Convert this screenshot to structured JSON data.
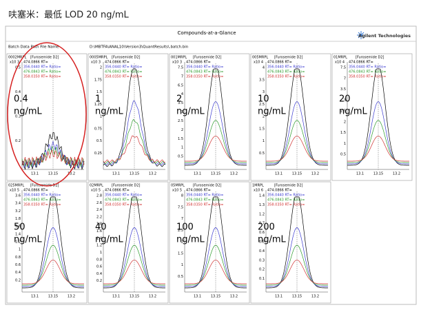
{
  "title": "呋塞米：最低 LOD 20 ng/mL",
  "report": {
    "heading": "Compounds-at-a-Glance",
    "brand": "Agilent Technologies",
    "path_label": "Batch Data Path File Name",
    "path": "D:\\MBTFA\\ANAL10\\Version3\\QuantResults\\.batch.bin"
  },
  "compound": "[Furosemide D2]",
  "unit": "ng/mL",
  "traces": [
    {
      "label": "474.0866 RT=",
      "color": "#000000"
    },
    {
      "label": "356.0440 RT= Ratio=",
      "color": "#3a3ad0"
    },
    {
      "label": "476.0843 RT= Ratio=",
      "color": "#2a9a2a"
    },
    {
      "label": "358.0350 RT= Ratio=",
      "color": "#d03030"
    }
  ],
  "xticks": [
    "13.1",
    "13.15",
    "13.2"
  ],
  "panels": [
    {
      "name": "0002MRPL",
      "exp": "x10 3",
      "conc": "0.4",
      "yticks": [
        "0.5",
        "0.4",
        "0.3",
        "0.2"
      ]
    },
    {
      "name": "0005MRPL",
      "exp": "x10 3",
      "conc": "1",
      "yticks": [
        "2",
        "1.75",
        "1.5",
        "1.25",
        "1",
        "0.75",
        "0.5",
        "0.25"
      ]
    },
    {
      "name": "001MRPL",
      "exp": "x10 3",
      "conc": "2",
      "yticks": [
        "7.5",
        "7",
        "6.5",
        "4",
        "3.5",
        "3",
        "2.5",
        "2",
        "1.5",
        "1",
        "0.5"
      ]
    },
    {
      "name": "005MRPL",
      "exp": "x10 4",
      "conc": "10",
      "yticks": [
        "4",
        "3.5",
        "3",
        "2.5",
        "2",
        "1.5",
        "1",
        "0.5"
      ]
    },
    {
      "name": "01MRPL",
      "exp": "x10 4",
      "conc": "20",
      "yticks": [
        "7.5",
        "7",
        "3.5",
        "3",
        "2.5",
        "2",
        "1.5",
        "1",
        "0.5"
      ]
    },
    {
      "name": "025MRPL",
      "exp": "x10 5",
      "conc": "50",
      "yticks": [
        "3.6",
        "3.4",
        "3.2",
        "1.8",
        "1.6",
        "1.4",
        "1.2",
        "1",
        "0.8",
        "0.6",
        "0.4",
        "0.2"
      ]
    },
    {
      "name": "02MRPL",
      "exp": "x10 5",
      "conc": "40",
      "yticks": [
        "2.8",
        "2.6",
        "2.4",
        "2.2",
        "1.8",
        "1.6",
        "1.4",
        "1.2",
        "1",
        "0.8",
        "0.6",
        "0.4",
        "0.2"
      ]
    },
    {
      "name": "05MRPL",
      "exp": "x10 5",
      "conc": "100",
      "yticks": [
        "8",
        "7.5",
        "7",
        "2.5",
        "2",
        "1.5",
        "1",
        "0.5"
      ]
    },
    {
      "name": "1MRPL",
      "exp": "x10 6",
      "conc": "200",
      "yticks": [
        "1.4",
        "1.3",
        "1.2",
        "0.7",
        "0.6",
        "0.5",
        "0.4",
        "0.3",
        "0.2",
        "0.1"
      ]
    }
  ]
}
